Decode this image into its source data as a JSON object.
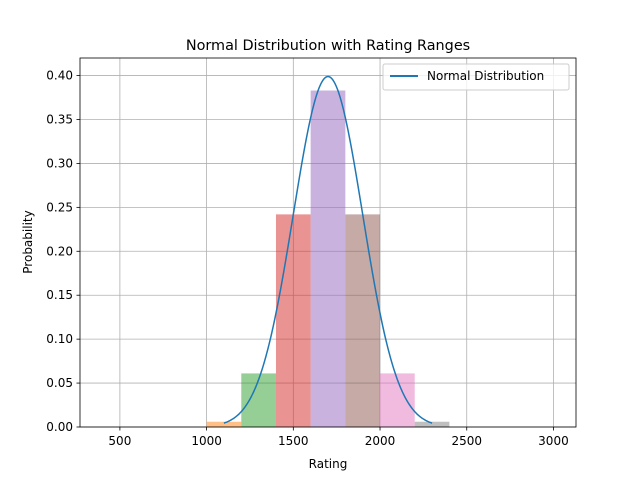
{
  "chart_data": {
    "type": "bar",
    "title": "Normal Distribution with Rating Ranges",
    "xlabel": "Rating",
    "ylabel": "Probability",
    "xlim": [
      270,
      3130
    ],
    "ylim": [
      0,
      0.42
    ],
    "xticks": [
      500,
      1000,
      1500,
      2000,
      2500,
      3000
    ],
    "yticks": [
      0.0,
      0.05,
      0.1,
      0.15,
      0.2,
      0.25,
      0.3,
      0.35,
      0.4
    ],
    "xtick_labels": [
      "500",
      "1000",
      "1500",
      "2000",
      "2500",
      "3000"
    ],
    "ytick_labels": [
      "0.00",
      "0.05",
      "0.10",
      "0.15",
      "0.20",
      "0.25",
      "0.30",
      "0.35",
      "0.40"
    ],
    "grid": true,
    "legend_position": "top-right",
    "bars": [
      {
        "x0": 1000,
        "x1": 1200,
        "value": 0.006,
        "color": "#ff7f0e"
      },
      {
        "x0": 1200,
        "x1": 1400,
        "value": 0.061,
        "color": "#2ca02c"
      },
      {
        "x0": 1400,
        "x1": 1600,
        "value": 0.242,
        "color": "#d62728"
      },
      {
        "x0": 1600,
        "x1": 1800,
        "value": 0.383,
        "color": "#9467bd"
      },
      {
        "x0": 1800,
        "x1": 2000,
        "value": 0.242,
        "color": "#8c564b"
      },
      {
        "x0": 2000,
        "x1": 2200,
        "value": 0.061,
        "color": "#e377c2"
      },
      {
        "x0": 2200,
        "x1": 2400,
        "value": 0.006,
        "color": "#7f7f7f"
      }
    ],
    "bar_alpha": 0.5,
    "series": [
      {
        "name": "Normal Distribution",
        "type": "line",
        "color": "#1f77b4",
        "distribution": {
          "mean": 1700,
          "std": 1
        },
        "x_range": [
          1100,
          2300
        ]
      }
    ]
  }
}
